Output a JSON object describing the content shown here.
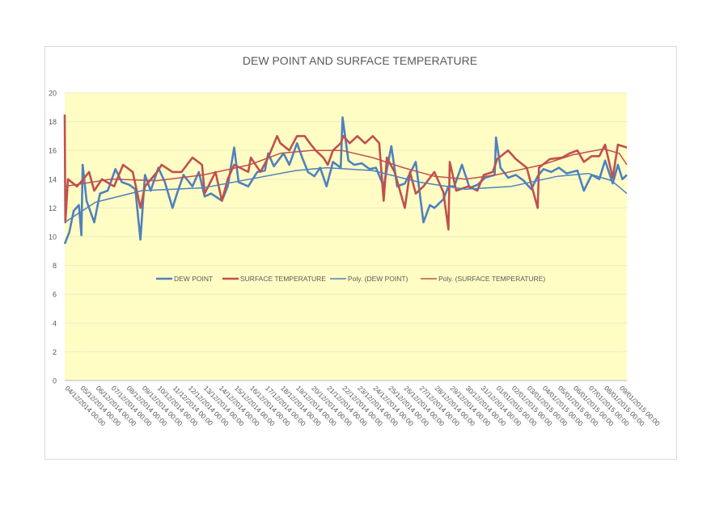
{
  "chart_data": {
    "type": "line",
    "title": "DEW POINT AND SURFACE TEMPERATURE",
    "xlabel": "",
    "ylabel": "",
    "ylim": [
      0,
      20
    ],
    "yticks": [
      0,
      2,
      4,
      6,
      8,
      10,
      12,
      14,
      16,
      18,
      20
    ],
    "xlim": [
      "04/12/2014 00:00",
      "09/01/2015 12:00"
    ],
    "xtick_labels": [
      "04/12/2014 00:00",
      "05/12/2014 00:00",
      "06/12/2014 00:00",
      "07/12/2014 00:00",
      "08/12/2014 00:00",
      "09/12/2014 00:00",
      "10/12/2014 00:00",
      "11/12/2014 00:00",
      "12/12/2014 00:00",
      "13/12/2014 00:00",
      "14/12/2014 00:00",
      "15/12/2014 00:00",
      "16/12/2014 00:00",
      "17/12/2014 00:00",
      "18/12/2014 00:00",
      "19/12/2014 00:00",
      "20/12/2014 00:00",
      "21/12/2014 00:00",
      "22/12/2014 00:00",
      "23/12/2014 00:00",
      "24/12/2014 00:00",
      "25/12/2014 00:00",
      "26/12/2014 00:00",
      "27/12/2014 00:00",
      "28/12/2014 00:00",
      "29/12/2014 00:00",
      "30/12/2014 00:00",
      "31/12/2014 00:00",
      "01/01/2015 00:00",
      "02/01/2015 00:00",
      "03/01/2015 00:00",
      "04/01/2015 00:00",
      "05/01/2015 00:00",
      "06/01/2015 00:00",
      "07/01/2015 00:00",
      "08/01/2015 00:00",
      "09/01/2015 00:00"
    ],
    "grid": true,
    "legend_position": "center",
    "plot_background": "#FFFDC4",
    "series": [
      {
        "name": "DEW POINT",
        "color": "#4F81BD",
        "kind": "data",
        "points": [
          [
            "04/12/2014 00:00",
            9.5
          ],
          [
            "04/12/2014 07:00",
            10.3
          ],
          [
            "04/12/2014 14:00",
            11.8
          ],
          [
            "04/12/2014 22:00",
            12.2
          ],
          [
            "05/12/2014 02:00",
            10.1
          ],
          [
            "05/12/2014 04:00",
            15.0
          ],
          [
            "05/12/2014 10:00",
            12.5
          ],
          [
            "05/12/2014 22:00",
            11.0
          ],
          [
            "06/12/2014 07:00",
            13.0
          ],
          [
            "06/12/2014 19:00",
            13.2
          ],
          [
            "07/12/2014 07:00",
            14.7
          ],
          [
            "07/12/2014 17:00",
            13.8
          ],
          [
            "08/12/2014 05:00",
            13.6
          ],
          [
            "08/12/2014 14:00",
            13.3
          ],
          [
            "08/12/2014 22:00",
            9.8
          ],
          [
            "09/12/2014 05:00",
            14.3
          ],
          [
            "09/12/2014 14:00",
            13.2
          ],
          [
            "10/12/2014 02:00",
            14.8
          ],
          [
            "10/12/2014 12:00",
            13.8
          ],
          [
            "11/12/2014 00:00",
            12.0
          ],
          [
            "11/12/2014 07:00",
            13.0
          ],
          [
            "11/12/2014 17:00",
            14.3
          ],
          [
            "12/12/2014 07:00",
            13.5
          ],
          [
            "12/12/2014 17:00",
            14.5
          ],
          [
            "13/12/2014 02:00",
            12.8
          ],
          [
            "13/12/2014 12:00",
            13.0
          ],
          [
            "13/12/2014 19:00",
            12.8
          ],
          [
            "14/12/2014 05:00",
            12.5
          ],
          [
            "14/12/2014 14:00",
            13.5
          ],
          [
            "15/12/2014 00:00",
            16.2
          ],
          [
            "15/12/2014 07:00",
            13.8
          ],
          [
            "15/12/2014 22:00",
            13.5
          ],
          [
            "16/12/2014 12:00",
            14.5
          ],
          [
            "17/12/2014 00:00",
            14.6
          ],
          [
            "17/12/2014 05:00",
            15.8
          ],
          [
            "17/12/2014 14:00",
            14.9
          ],
          [
            "18/12/2014 05:00",
            15.8
          ],
          [
            "18/12/2014 14:00",
            15.0
          ],
          [
            "19/12/2014 02:00",
            16.5
          ],
          [
            "19/12/2014 10:00",
            15.5
          ],
          [
            "19/12/2014 19:00",
            14.5
          ],
          [
            "20/12/2014 05:00",
            14.2
          ],
          [
            "20/12/2014 14:00",
            14.8
          ],
          [
            "21/12/2014 00:00",
            13.5
          ],
          [
            "21/12/2014 10:00",
            15.2
          ],
          [
            "21/12/2014 22:00",
            14.8
          ],
          [
            "22/12/2014 01:00",
            18.3
          ],
          [
            "22/12/2014 10:00",
            15.3
          ],
          [
            "22/12/2014 19:00",
            15.0
          ],
          [
            "23/12/2014 07:00",
            15.1
          ],
          [
            "23/12/2014 19:00",
            14.7
          ],
          [
            "24/12/2014 05:00",
            14.8
          ],
          [
            "24/12/2014 17:00",
            13.5
          ],
          [
            "25/12/2014 05:00",
            16.3
          ],
          [
            "25/12/2014 14:00",
            13.5
          ],
          [
            "26/12/2014 02:00",
            13.7
          ],
          [
            "26/12/2014 19:00",
            15.2
          ],
          [
            "27/12/2014 07:00",
            11.0
          ],
          [
            "27/12/2014 17:00",
            12.2
          ],
          [
            "28/12/2014 00:00",
            12.0
          ],
          [
            "28/12/2014 14:00",
            12.6
          ],
          [
            "28/12/2014 22:00",
            13.5
          ],
          [
            "29/12/2014 07:00",
            13.5
          ],
          [
            "29/12/2014 19:00",
            15.0
          ],
          [
            "30/12/2014 07:00",
            13.4
          ],
          [
            "30/12/2014 19:00",
            13.6
          ],
          [
            "31/12/2014 07:00",
            14.1
          ],
          [
            "31/12/2014 22:00",
            14.3
          ],
          [
            "01/01/2015 00:00",
            16.9
          ],
          [
            "01/01/2015 07:00",
            14.8
          ],
          [
            "01/01/2015 19:00",
            14.1
          ],
          [
            "02/01/2015 07:00",
            14.3
          ],
          [
            "02/01/2015 19:00",
            13.9
          ],
          [
            "03/01/2015 07:00",
            13.3
          ],
          [
            "03/01/2015 17:00",
            14.2
          ],
          [
            "04/01/2015 02:00",
            14.7
          ],
          [
            "04/01/2015 14:00",
            14.5
          ],
          [
            "05/01/2015 02:00",
            14.8
          ],
          [
            "05/01/2015 14:00",
            14.4
          ],
          [
            "06/01/2015 07:00",
            14.6
          ],
          [
            "06/01/2015 17:00",
            13.2
          ],
          [
            "07/01/2015 05:00",
            14.3
          ],
          [
            "07/01/2015 17:00",
            14.0
          ],
          [
            "08/01/2015 02:00",
            15.3
          ],
          [
            "08/01/2015 14:00",
            13.7
          ],
          [
            "08/01/2015 22:00",
            15.0
          ],
          [
            "09/01/2015 05:00",
            14.0
          ],
          [
            "09/01/2015 12:00",
            14.3
          ]
        ]
      },
      {
        "name": "SURFACE TEMPERATURE",
        "color": "#C0504D",
        "kind": "data",
        "points": [
          [
            "04/12/2014 00:00",
            18.5
          ],
          [
            "04/12/2014 01:00",
            11.0
          ],
          [
            "04/12/2014 05:00",
            14.0
          ],
          [
            "04/12/2014 19:00",
            13.5
          ],
          [
            "05/12/2014 05:00",
            14.0
          ],
          [
            "05/12/2014 14:00",
            14.5
          ],
          [
            "05/12/2014 22:00",
            13.2
          ],
          [
            "06/12/2014 10:00",
            14.0
          ],
          [
            "07/12/2014 05:00",
            13.5
          ],
          [
            "07/12/2014 19:00",
            15.0
          ],
          [
            "08/12/2014 10:00",
            14.5
          ],
          [
            "08/12/2014 22:00",
            12.0
          ],
          [
            "09/12/2014 05:00",
            13.5
          ],
          [
            "10/12/2014 00:00",
            14.5
          ],
          [
            "10/12/2014 07:00",
            15.0
          ],
          [
            "11/12/2014 00:00",
            14.5
          ],
          [
            "11/12/2014 14:00",
            14.5
          ],
          [
            "12/12/2014 07:00",
            15.5
          ],
          [
            "12/12/2014 22:00",
            15.0
          ],
          [
            "13/12/2014 02:00",
            13.0
          ],
          [
            "13/12/2014 19:00",
            14.5
          ],
          [
            "14/12/2014 05:00",
            12.5
          ],
          [
            "14/12/2014 14:00",
            14.0
          ],
          [
            "15/12/2014 00:00",
            15.0
          ],
          [
            "15/12/2014 22:00",
            14.5
          ],
          [
            "16/12/2014 02:00",
            15.5
          ],
          [
            "16/12/2014 17:00",
            14.5
          ],
          [
            "17/12/2014 05:00",
            15.5
          ],
          [
            "17/12/2014 19:00",
            17.0
          ],
          [
            "18/12/2014 00:00",
            16.5
          ],
          [
            "18/12/2014 14:00",
            16.0
          ],
          [
            "19/12/2014 02:00",
            17.0
          ],
          [
            "19/12/2014 14:00",
            17.0
          ],
          [
            "19/12/2014 22:00",
            16.5
          ],
          [
            "20/12/2014 07:00",
            16.0
          ],
          [
            "20/12/2014 19:00",
            15.5
          ],
          [
            "21/12/2014 02:00",
            15.0
          ],
          [
            "21/12/2014 10:00",
            16.0
          ],
          [
            "21/12/2014 22:00",
            16.5
          ],
          [
            "22/12/2014 02:00",
            17.0
          ],
          [
            "22/12/2014 12:00",
            16.5
          ],
          [
            "23/12/2014 00:00",
            17.0
          ],
          [
            "23/12/2014 12:00",
            16.5
          ],
          [
            "24/12/2014 00:00",
            17.0
          ],
          [
            "24/12/2014 10:00",
            16.5
          ],
          [
            "24/12/2014 17:00",
            12.5
          ],
          [
            "24/12/2014 22:00",
            15.5
          ],
          [
            "25/12/2014 10:00",
            14.5
          ],
          [
            "26/12/2014 02:00",
            12.0
          ],
          [
            "26/12/2014 10:00",
            14.5
          ],
          [
            "26/12/2014 19:00",
            13.0
          ],
          [
            "27/12/2014 07:00",
            13.5
          ],
          [
            "28/12/2014 00:00",
            14.5
          ],
          [
            "28/12/2014 14:00",
            13.1
          ],
          [
            "28/12/2014 22:00",
            10.5
          ],
          [
            "29/12/2014 00:00",
            15.2
          ],
          [
            "29/12/2014 10:00",
            13.2
          ],
          [
            "30/12/2014 05:00",
            13.5
          ],
          [
            "30/12/2014 19:00",
            13.2
          ],
          [
            "31/12/2014 05:00",
            14.3
          ],
          [
            "31/12/2014 19:00",
            14.5
          ],
          [
            "01/01/2015 02:00",
            15.4
          ],
          [
            "01/01/2015 19:00",
            16.0
          ],
          [
            "02/01/2015 07:00",
            15.4
          ],
          [
            "03/01/2015 00:00",
            14.8
          ],
          [
            "03/01/2015 17:00",
            12.0
          ],
          [
            "03/01/2015 19:00",
            14.8
          ],
          [
            "04/01/2015 12:00",
            15.4
          ],
          [
            "05/01/2015 07:00",
            15.5
          ],
          [
            "05/01/2015 19:00",
            15.8
          ],
          [
            "06/01/2015 07:00",
            16.0
          ],
          [
            "06/01/2015 17:00",
            15.2
          ],
          [
            "07/01/2015 05:00",
            15.6
          ],
          [
            "07/01/2015 17:00",
            15.6
          ],
          [
            "08/01/2015 02:00",
            16.4
          ],
          [
            "08/01/2015 14:00",
            14.1
          ],
          [
            "08/01/2015 22:00",
            16.4
          ],
          [
            "09/01/2015 12:00",
            16.2
          ]
        ]
      },
      {
        "name": "Poly. (DEW POINT)",
        "color": "#4F81BD",
        "kind": "trend",
        "points": [
          [
            "04/12/2014 00:00",
            11.0
          ],
          [
            "06/12/2014 00:00",
            12.4
          ],
          [
            "09/12/2014 00:00",
            13.2
          ],
          [
            "13/12/2014 00:00",
            13.4
          ],
          [
            "16/12/2014 00:00",
            14.0
          ],
          [
            "19/12/2014 00:00",
            14.6
          ],
          [
            "21/12/2014 00:00",
            14.8
          ],
          [
            "24/12/2014 00:00",
            14.6
          ],
          [
            "27/12/2014 00:00",
            13.8
          ],
          [
            "30/12/2014 00:00",
            13.3
          ],
          [
            "02/01/2015 00:00",
            13.5
          ],
          [
            "05/01/2015 00:00",
            14.2
          ],
          [
            "07/01/2015 00:00",
            14.4
          ],
          [
            "08/01/2015 12:00",
            13.9
          ],
          [
            "09/01/2015 12:00",
            13.0
          ]
        ]
      },
      {
        "name": "Poly. (SURFACE TEMPERATURE)",
        "color": "#C0504D",
        "kind": "trend",
        "points": [
          [
            "04/12/2014 00:00",
            13.5
          ],
          [
            "07/12/2014 00:00",
            14.0
          ],
          [
            "10/12/2014 00:00",
            13.9
          ],
          [
            "13/12/2014 00:00",
            14.3
          ],
          [
            "16/12/2014 00:00",
            15.0
          ],
          [
            "18/12/2014 00:00",
            15.8
          ],
          [
            "20/12/2014 00:00",
            16.0
          ],
          [
            "22/12/2014 00:00",
            16.0
          ],
          [
            "24/12/2014 00:00",
            15.5
          ],
          [
            "26/12/2014 00:00",
            14.8
          ],
          [
            "28/12/2014 00:00",
            14.2
          ],
          [
            "30/12/2014 00:00",
            14.0
          ],
          [
            "01/01/2015 00:00",
            14.3
          ],
          [
            "04/01/2015 00:00",
            15.0
          ],
          [
            "06/01/2015 00:00",
            15.7
          ],
          [
            "08/01/2015 00:00",
            16.1
          ],
          [
            "09/01/2015 00:00",
            15.8
          ],
          [
            "09/01/2015 12:00",
            15.0
          ]
        ]
      }
    ]
  }
}
